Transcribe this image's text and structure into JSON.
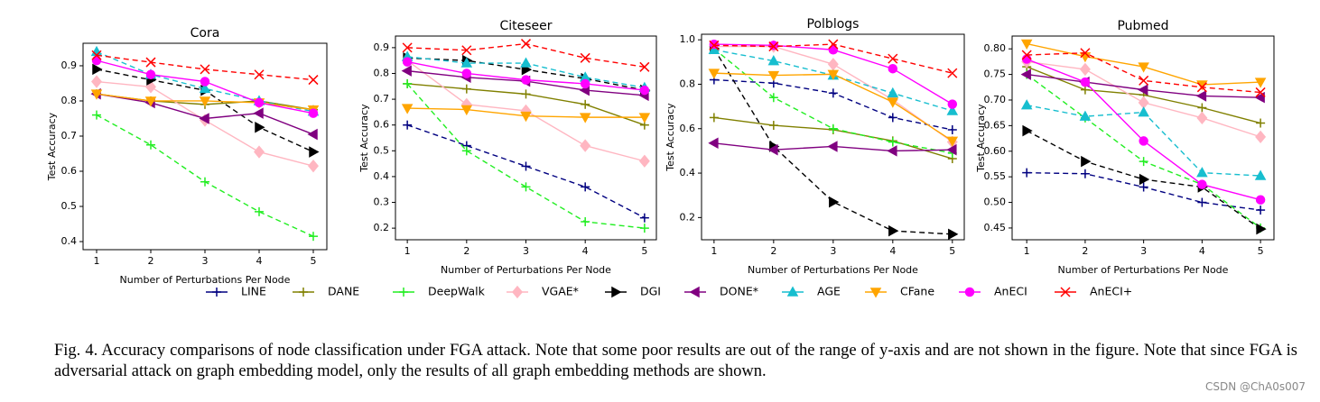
{
  "chart_data": [
    {
      "type": "line",
      "title": "Cora",
      "x_label": "Number of Perturbations Per Node",
      "y_label": "Test Accuracy",
      "x": [
        1,
        2,
        3,
        4,
        5
      ],
      "xlim": [
        0.75,
        5.25
      ],
      "ylim": [
        0.377,
        0.964
      ],
      "xticks": [
        1,
        2,
        3,
        4,
        5
      ],
      "yticks": [
        0.4,
        0.5,
        0.6,
        0.7,
        0.8,
        0.9
      ],
      "series": [
        {
          "name": "LINE",
          "color": "#000080",
          "marker": "plus",
          "line_style": "dashed",
          "values": [
            null,
            null,
            null,
            null,
            null
          ]
        },
        {
          "name": "DANE",
          "color": "#808000",
          "marker": "plus",
          "line_style": "solid",
          "values": [
            0.82,
            0.8,
            0.79,
            0.8,
            0.775
          ]
        },
        {
          "name": "DeepWalk",
          "color": "#22ee22",
          "marker": "plus",
          "line_style": "dashed",
          "values": [
            0.76,
            0.675,
            0.57,
            0.485,
            0.415
          ]
        },
        {
          "name": "VGAE*",
          "color": "#ffb6c1",
          "marker": "diamond",
          "line_style": "solid",
          "values": [
            0.855,
            0.84,
            0.745,
            0.655,
            0.615
          ]
        },
        {
          "name": "DGI",
          "color": "#000000",
          "marker": "tri-right",
          "line_style": "dashed",
          "values": [
            0.89,
            0.86,
            0.83,
            0.725,
            0.655
          ]
        },
        {
          "name": "DONE*",
          "color": "#800080",
          "marker": "tri-left",
          "line_style": "solid",
          "values": [
            0.82,
            0.795,
            0.75,
            0.765,
            0.705
          ]
        },
        {
          "name": "AGE",
          "color": "#17becf",
          "marker": "tri-up",
          "line_style": "dashed",
          "values": [
            0.94,
            0.875,
            0.835,
            0.8,
            0.77
          ]
        },
        {
          "name": "CFane",
          "color": "#ffa500",
          "marker": "tri-down",
          "line_style": "solid",
          "values": [
            0.82,
            0.8,
            0.8,
            0.795,
            0.775
          ]
        },
        {
          "name": "AnECI",
          "color": "#ff00ff",
          "marker": "circle",
          "line_style": "solid",
          "values": [
            0.915,
            0.875,
            0.855,
            0.795,
            0.765
          ]
        },
        {
          "name": "AnECI+",
          "color": "#ff0000",
          "marker": "x",
          "line_style": "dashed",
          "values": [
            0.93,
            0.91,
            0.89,
            0.875,
            0.86
          ]
        }
      ]
    },
    {
      "type": "line",
      "title": "Citeseer",
      "x_label": "Number of Perturbations Per Node",
      "y_label": "Test Accuracy",
      "x": [
        1,
        2,
        3,
        4,
        5
      ],
      "xlim": [
        0.8,
        5.2
      ],
      "ylim": [
        0.155,
        0.945
      ],
      "xticks": [
        1,
        2,
        3,
        4,
        5
      ],
      "yticks": [
        0.2,
        0.3,
        0.4,
        0.5,
        0.6,
        0.7,
        0.8,
        0.9
      ],
      "series": [
        {
          "name": "LINE",
          "color": "#000080",
          "marker": "plus",
          "line_style": "dashed",
          "values": [
            0.6,
            0.52,
            0.44,
            0.36,
            0.24
          ]
        },
        {
          "name": "DANE",
          "color": "#808000",
          "marker": "plus",
          "line_style": "solid",
          "values": [
            0.76,
            0.74,
            0.72,
            0.68,
            0.6
          ]
        },
        {
          "name": "DeepWalk",
          "color": "#22ee22",
          "marker": "plus",
          "line_style": "dashed",
          "values": [
            0.76,
            0.5,
            0.36,
            0.225,
            0.2
          ]
        },
        {
          "name": "VGAE*",
          "color": "#ffb6c1",
          "marker": "diamond",
          "line_style": "solid",
          "values": [
            0.85,
            0.68,
            0.655,
            0.52,
            0.46
          ]
        },
        {
          "name": "DGI",
          "color": "#000000",
          "marker": "tri-right",
          "line_style": "dashed",
          "values": [
            0.86,
            0.85,
            0.815,
            0.78,
            0.735
          ]
        },
        {
          "name": "DONE*",
          "color": "#800080",
          "marker": "tri-left",
          "line_style": "solid",
          "values": [
            0.81,
            0.785,
            0.77,
            0.735,
            0.715
          ]
        },
        {
          "name": "AGE",
          "color": "#17becf",
          "marker": "tri-up",
          "line_style": "dashed",
          "values": [
            0.865,
            0.84,
            0.84,
            0.785,
            0.745
          ]
        },
        {
          "name": "CFane",
          "color": "#ffa500",
          "marker": "tri-down",
          "line_style": "solid",
          "values": [
            0.665,
            0.66,
            0.635,
            0.63,
            0.63
          ]
        },
        {
          "name": "AnECI",
          "color": "#ff00ff",
          "marker": "circle",
          "line_style": "solid",
          "values": [
            0.845,
            0.8,
            0.775,
            0.76,
            0.735
          ]
        },
        {
          "name": "AnECI+",
          "color": "#ff0000",
          "marker": "x",
          "line_style": "dashed",
          "values": [
            0.9,
            0.89,
            0.915,
            0.86,
            0.825
          ]
        }
      ]
    },
    {
      "type": "line",
      "title": "Polblogs",
      "x_label": "Number of Perturbations Per Node",
      "y_label": "Test Accuracy",
      "x": [
        1,
        2,
        3,
        4,
        5
      ],
      "xlim": [
        0.79,
        5.2
      ],
      "ylim": [
        0.1,
        1.025
      ],
      "xticks": [
        1,
        2,
        3,
        4,
        5
      ],
      "yticks": [
        0.2,
        0.4,
        0.6,
        0.8,
        {
          "value": 1,
          "label": "1.0"
        }
      ],
      "series": [
        {
          "name": "LINE",
          "color": "#000080",
          "marker": "plus",
          "line_style": "dashed",
          "values": [
            0.82,
            0.805,
            0.76,
            0.65,
            0.595
          ]
        },
        {
          "name": "DANE",
          "color": "#808000",
          "marker": "plus",
          "line_style": "solid",
          "values": [
            0.65,
            0.615,
            0.595,
            0.545,
            0.465
          ]
        },
        {
          "name": "DeepWalk",
          "color": "#22ee22",
          "marker": "plus",
          "line_style": "dashed",
          "values": [
            0.96,
            0.74,
            0.6,
            0.54,
            0.49
          ]
        },
        {
          "name": "VGAE*",
          "color": "#ffb6c1",
          "marker": "diamond",
          "line_style": "solid",
          "values": [
            0.97,
            0.97,
            0.89,
            0.73,
            0.54
          ]
        },
        {
          "name": "DGI",
          "color": "#000000",
          "marker": "tri-right",
          "line_style": "dashed",
          "values": [
            0.96,
            0.52,
            0.27,
            0.14,
            0.125
          ]
        },
        {
          "name": "DONE*",
          "color": "#800080",
          "marker": "tri-left",
          "line_style": "solid",
          "values": [
            0.535,
            0.505,
            0.52,
            0.5,
            0.505
          ]
        },
        {
          "name": "AGE",
          "color": "#17becf",
          "marker": "tri-up",
          "line_style": "dashed",
          "values": [
            0.955,
            0.905,
            0.84,
            0.76,
            0.68
          ]
        },
        {
          "name": "CFane",
          "color": "#ffa500",
          "marker": "tri-down",
          "line_style": "solid",
          "values": [
            0.85,
            0.84,
            0.845,
            0.72,
            0.545
          ]
        },
        {
          "name": "AnECI",
          "color": "#ff00ff",
          "marker": "circle",
          "line_style": "solid",
          "values": [
            0.98,
            0.975,
            0.955,
            0.87,
            0.71
          ]
        },
        {
          "name": "AnECI+",
          "color": "#ff0000",
          "marker": "x",
          "line_style": "dashed",
          "values": [
            0.975,
            0.97,
            0.98,
            0.915,
            0.85
          ]
        }
      ]
    },
    {
      "type": "line",
      "title": "Pubmed",
      "x_label": "Number of Perturbations Per Node",
      "y_label": "Test Accuracy",
      "x": [
        1,
        2,
        3,
        4,
        5
      ],
      "xlim": [
        0.75,
        5.23
      ],
      "ylim": [
        0.427,
        0.825
      ],
      "xticks": [
        1,
        2,
        3,
        4,
        5
      ],
      "yticks": [
        0.45,
        {
          "value": 0.5,
          "label": "0.50"
        },
        0.55,
        {
          "value": 0.6,
          "label": "0.60"
        },
        0.65,
        {
          "value": 0.7,
          "label": "0.70"
        },
        0.75,
        {
          "value": 0.8,
          "label": "0.80"
        }
      ],
      "series": [
        {
          "name": "LINE",
          "color": "#000080",
          "marker": "plus",
          "line_style": "dashed",
          "values": [
            0.558,
            0.556,
            0.53,
            0.5,
            0.485
          ]
        },
        {
          "name": "DANE",
          "color": "#808000",
          "marker": "plus",
          "line_style": "solid",
          "values": [
            0.765,
            0.72,
            0.71,
            0.685,
            0.655
          ]
        },
        {
          "name": "DeepWalk",
          "color": "#22ee22",
          "marker": "plus",
          "line_style": "dashed",
          "values": [
            0.75,
            0.665,
            0.58,
            0.535,
            0.45
          ]
        },
        {
          "name": "VGAE*",
          "color": "#ffb6c1",
          "marker": "diamond",
          "line_style": "solid",
          "values": [
            0.775,
            0.76,
            0.695,
            0.665,
            0.628
          ]
        },
        {
          "name": "DGI",
          "color": "#000000",
          "marker": "tri-right",
          "line_style": "dashed",
          "values": [
            0.64,
            0.58,
            0.545,
            0.53,
            0.448
          ]
        },
        {
          "name": "DONE*",
          "color": "#800080",
          "marker": "tri-left",
          "line_style": "solid",
          "values": [
            0.75,
            0.735,
            0.72,
            0.708,
            0.705
          ]
        },
        {
          "name": "AGE",
          "color": "#17becf",
          "marker": "tri-up",
          "line_style": "dashed",
          "values": [
            0.69,
            0.668,
            0.676,
            0.558,
            0.552
          ]
        },
        {
          "name": "CFane",
          "color": "#ffa500",
          "marker": "tri-down",
          "line_style": "solid",
          "values": [
            0.81,
            0.785,
            0.765,
            0.73,
            0.735
          ]
        },
        {
          "name": "AnECI",
          "color": "#ff00ff",
          "marker": "circle",
          "line_style": "solid",
          "values": [
            0.78,
            0.735,
            0.62,
            0.535,
            0.505
          ]
        },
        {
          "name": "AnECI+",
          "color": "#ff0000",
          "marker": "x",
          "line_style": "dashed",
          "values": [
            0.788,
            0.792,
            0.738,
            0.725,
            0.715
          ]
        }
      ]
    }
  ],
  "caption": "Fig. 4.  Accuracy comparisons of node classification under FGA attack. Note that some poor results are out of the range of y-axis and are not shown in the figure. Note that since FGA is adversarial attack on graph embedding model, only the results of all graph embedding methods are shown.",
  "watermark": "CSDN @ChA0s007"
}
